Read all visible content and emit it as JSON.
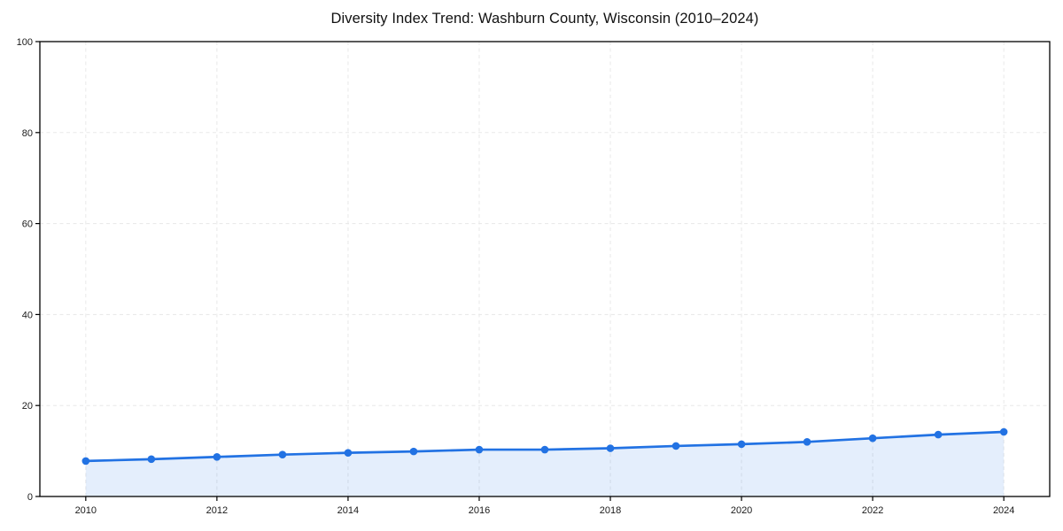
{
  "chart": {
    "title": "Diversity Index Trend: Washburn County, Wisconsin (2010–2024)"
  },
  "chart_data": {
    "type": "line",
    "title": "Diversity Index Trend: Washburn County, Wisconsin (2010–2024)",
    "x": [
      2010,
      2011,
      2012,
      2013,
      2014,
      2015,
      2016,
      2017,
      2018,
      2019,
      2020,
      2021,
      2022,
      2023,
      2024
    ],
    "series": [
      {
        "name": "Diversity Index",
        "values": [
          7.8,
          8.2,
          8.7,
          9.2,
          9.6,
          9.9,
          10.3,
          10.3,
          10.6,
          11.1,
          11.5,
          12.0,
          12.8,
          13.6,
          14.2
        ]
      }
    ],
    "xlabel": "",
    "ylabel": "",
    "ylim": [
      0,
      100
    ],
    "xlim": [
      2009.3,
      2024.7
    ],
    "yticks": [
      0,
      20,
      40,
      60,
      80,
      100
    ],
    "xticks": [
      2010,
      2012,
      2014,
      2016,
      2018,
      2020,
      2022,
      2024
    ],
    "grid": true,
    "grid_style": "dashed",
    "legend": "none",
    "marker": "circle",
    "area_fill": true,
    "colors": {
      "line": "#2272e3",
      "area_fill": "rgba(34,114,227,0.12)",
      "grid": "#e8e8e8",
      "axis": "#000000",
      "tick_label": "#1a1a1a",
      "title": "#111111",
      "background": "#ffffff"
    }
  }
}
